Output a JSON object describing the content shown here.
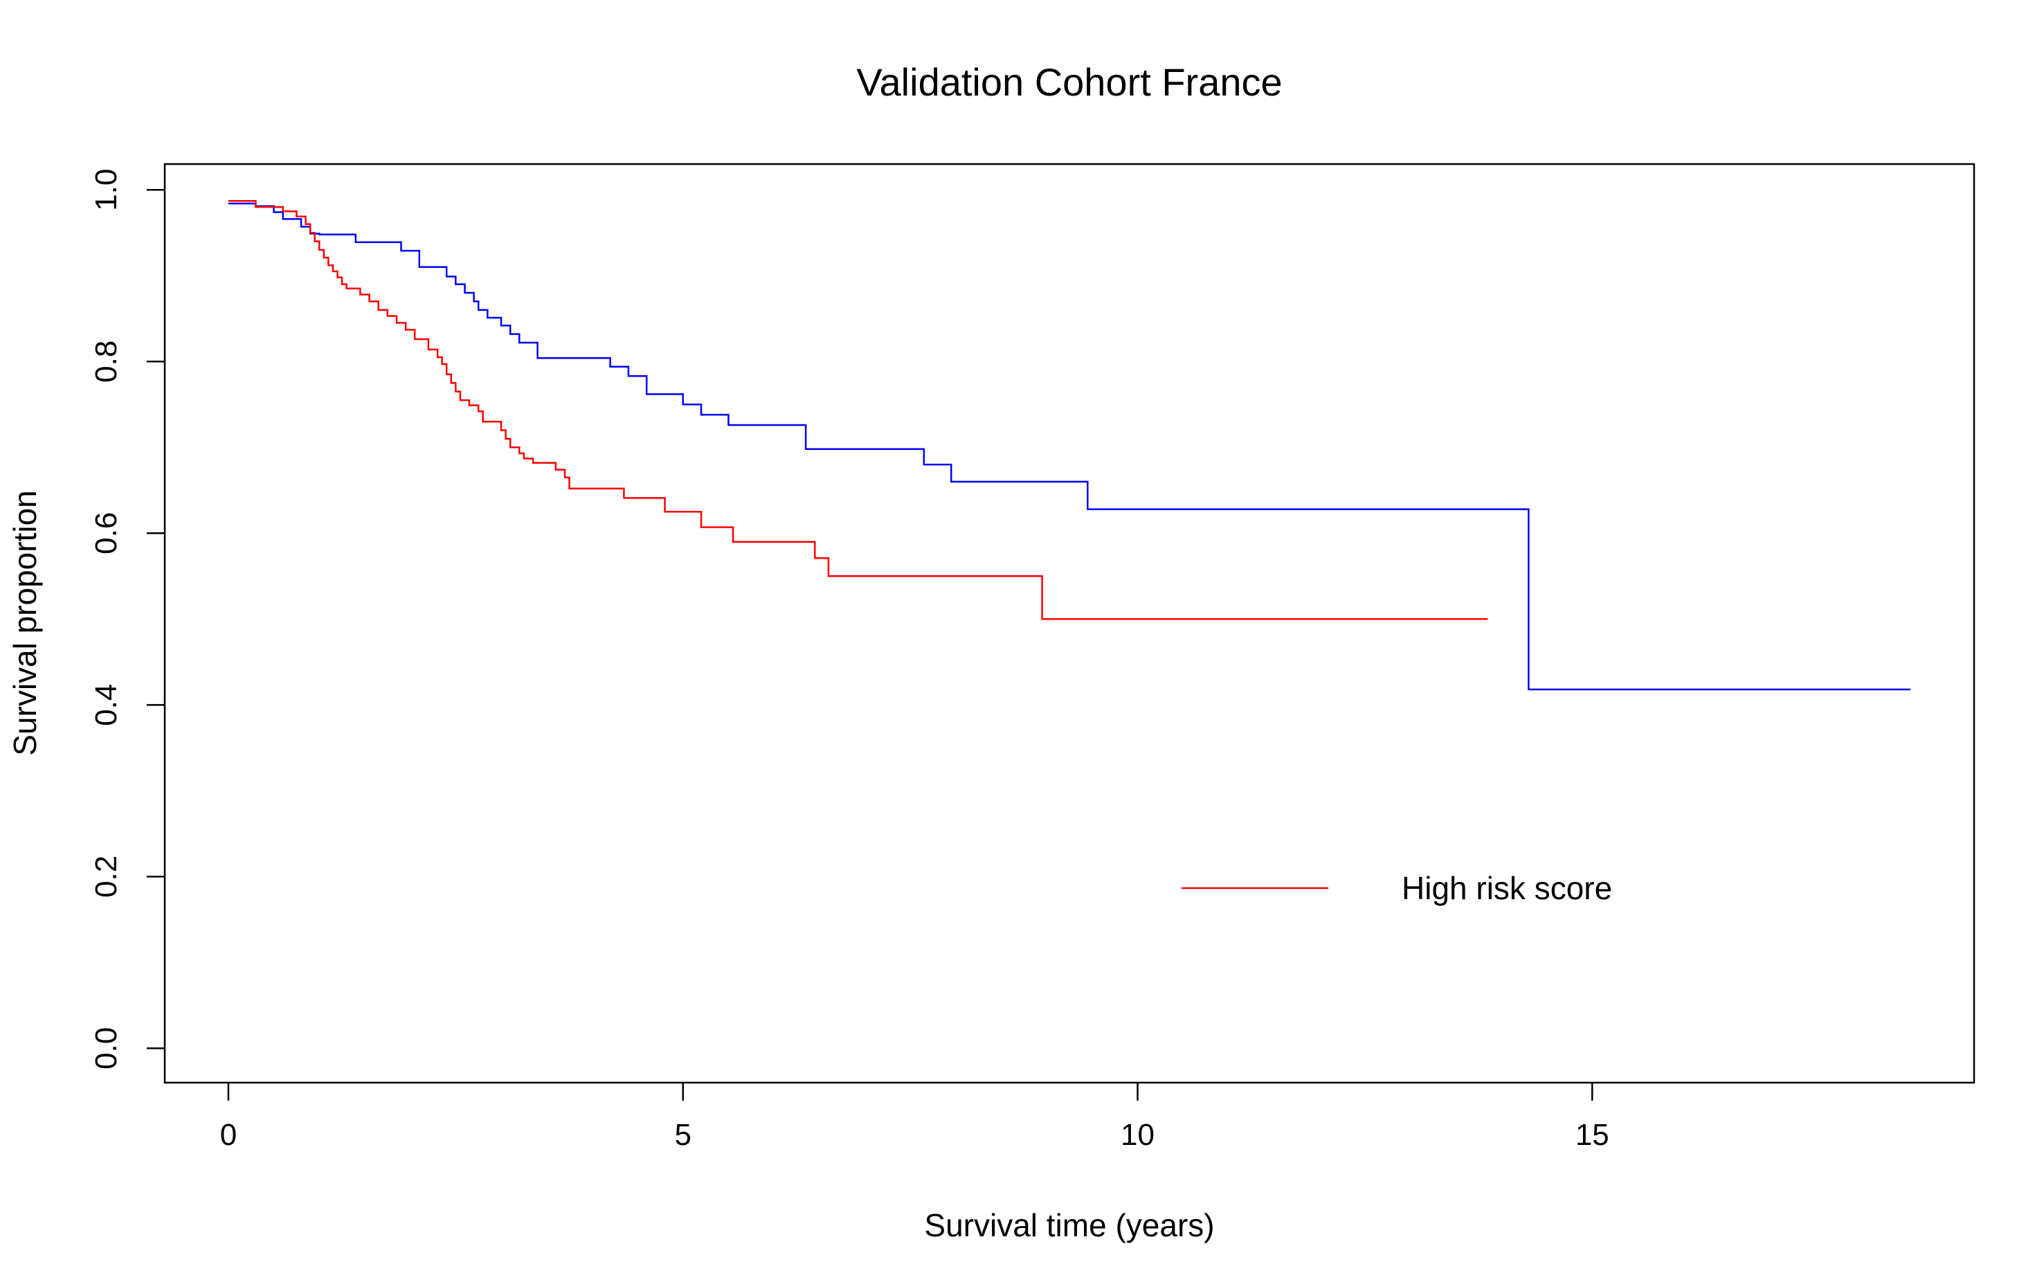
{
  "chart_data": {
    "type": "line",
    "step": true,
    "title": "Validation Cohort France",
    "xlabel": "Survival time (years)",
    "ylabel": "Survival proportion",
    "xlim": [
      -0.7,
      19.2
    ],
    "ylim": [
      -0.04,
      1.03
    ],
    "xticks": [
      0,
      5,
      10,
      15
    ],
    "xtick_labels": [
      "0",
      "5",
      "10",
      "15"
    ],
    "yticks": [
      0.0,
      0.2,
      0.4,
      0.6,
      0.8,
      1.0
    ],
    "ytick_labels": [
      "0.0",
      "0.2",
      "0.4",
      "0.6",
      "0.8",
      "1.0"
    ],
    "grid": false,
    "legend_position": "bottom-right",
    "series": [
      {
        "name": "",
        "color": "#0000ff",
        "x": [
          0,
          0.3,
          0.5,
          0.6,
          0.8,
          0.9,
          1.0,
          1.4,
          1.9,
          2.1,
          2.2,
          2.4,
          2.5,
          2.6,
          2.7,
          2.75,
          2.85,
          3.0,
          3.1,
          3.2,
          3.4,
          4.2,
          4.4,
          4.6,
          5.0,
          5.2,
          5.5,
          6.35,
          7.65,
          7.95,
          9.45,
          14.3,
          18.5
        ],
        "y": [
          0.984,
          0.981,
          0.974,
          0.966,
          0.957,
          0.949,
          0.948,
          0.939,
          0.929,
          0.91,
          0.91,
          0.899,
          0.89,
          0.88,
          0.87,
          0.86,
          0.851,
          0.842,
          0.832,
          0.822,
          0.804,
          0.794,
          0.783,
          0.762,
          0.75,
          0.738,
          0.726,
          0.698,
          0.68,
          0.66,
          0.628,
          0.418,
          0.418
        ]
      },
      {
        "name": "High risk score",
        "color": "#ff0000",
        "x": [
          0,
          0.3,
          0.6,
          0.75,
          0.85,
          0.9,
          0.95,
          1.0,
          1.05,
          1.1,
          1.15,
          1.2,
          1.25,
          1.3,
          1.45,
          1.55,
          1.65,
          1.75,
          1.85,
          1.95,
          2.05,
          2.2,
          2.3,
          2.35,
          2.4,
          2.45,
          2.5,
          2.55,
          2.65,
          2.75,
          2.8,
          2.95,
          3.0,
          3.05,
          3.1,
          3.2,
          3.25,
          3.35,
          3.6,
          3.7,
          3.75,
          4.35,
          4.8,
          5.2,
          5.55,
          6.45,
          6.6,
          8.95,
          13.85
        ],
        "y": [
          0.987,
          0.98,
          0.975,
          0.969,
          0.96,
          0.95,
          0.94,
          0.93,
          0.921,
          0.912,
          0.905,
          0.898,
          0.89,
          0.885,
          0.878,
          0.87,
          0.86,
          0.853,
          0.845,
          0.837,
          0.826,
          0.814,
          0.805,
          0.797,
          0.785,
          0.775,
          0.765,
          0.755,
          0.749,
          0.742,
          0.73,
          0.73,
          0.72,
          0.71,
          0.7,
          0.693,
          0.687,
          0.682,
          0.674,
          0.665,
          0.652,
          0.641,
          0.625,
          0.607,
          0.59,
          0.571,
          0.55,
          0.5,
          0.5
        ]
      }
    ]
  }
}
